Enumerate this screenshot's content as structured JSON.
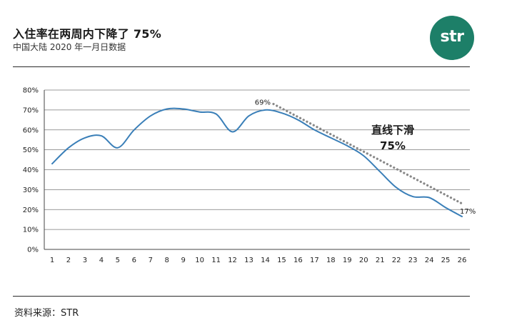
{
  "header": {
    "title": "入住率在两周内下降了 75%",
    "subtitle": "中国大陆 2020 年一月日数据"
  },
  "logo": {
    "text": "str",
    "color": "#1d7f68"
  },
  "footer": {
    "source": "资料来源：STR"
  },
  "chart_data": {
    "type": "line",
    "title": "",
    "xlabel": "",
    "ylabel": "",
    "x": [
      1,
      2,
      3,
      4,
      5,
      6,
      7,
      8,
      9,
      10,
      11,
      12,
      13,
      14,
      15,
      16,
      17,
      18,
      19,
      20,
      21,
      22,
      23,
      24,
      25,
      26
    ],
    "ylim": [
      0,
      80
    ],
    "yticks": [
      "0%",
      "10%",
      "20%",
      "30%",
      "40%",
      "50%",
      "60%",
      "70%",
      "80%"
    ],
    "grid": true,
    "series": [
      {
        "values": [
          43,
          51,
          56,
          57,
          51,
          60,
          67,
          70.5,
          70.5,
          69,
          68,
          59,
          67,
          70,
          68.5,
          65,
          60,
          56,
          52,
          47,
          39,
          31,
          26.5,
          26,
          21,
          16.5
        ],
        "color": "#3a7fb8"
      }
    ],
    "trend": {
      "from_x": 14.5,
      "from_y": 73,
      "to_x": 26,
      "to_y": 23,
      "color": "#888888",
      "start_label": "69%",
      "end_label": "17%",
      "annotation_line1": "直线下滑",
      "annotation_line2": "75%"
    }
  }
}
